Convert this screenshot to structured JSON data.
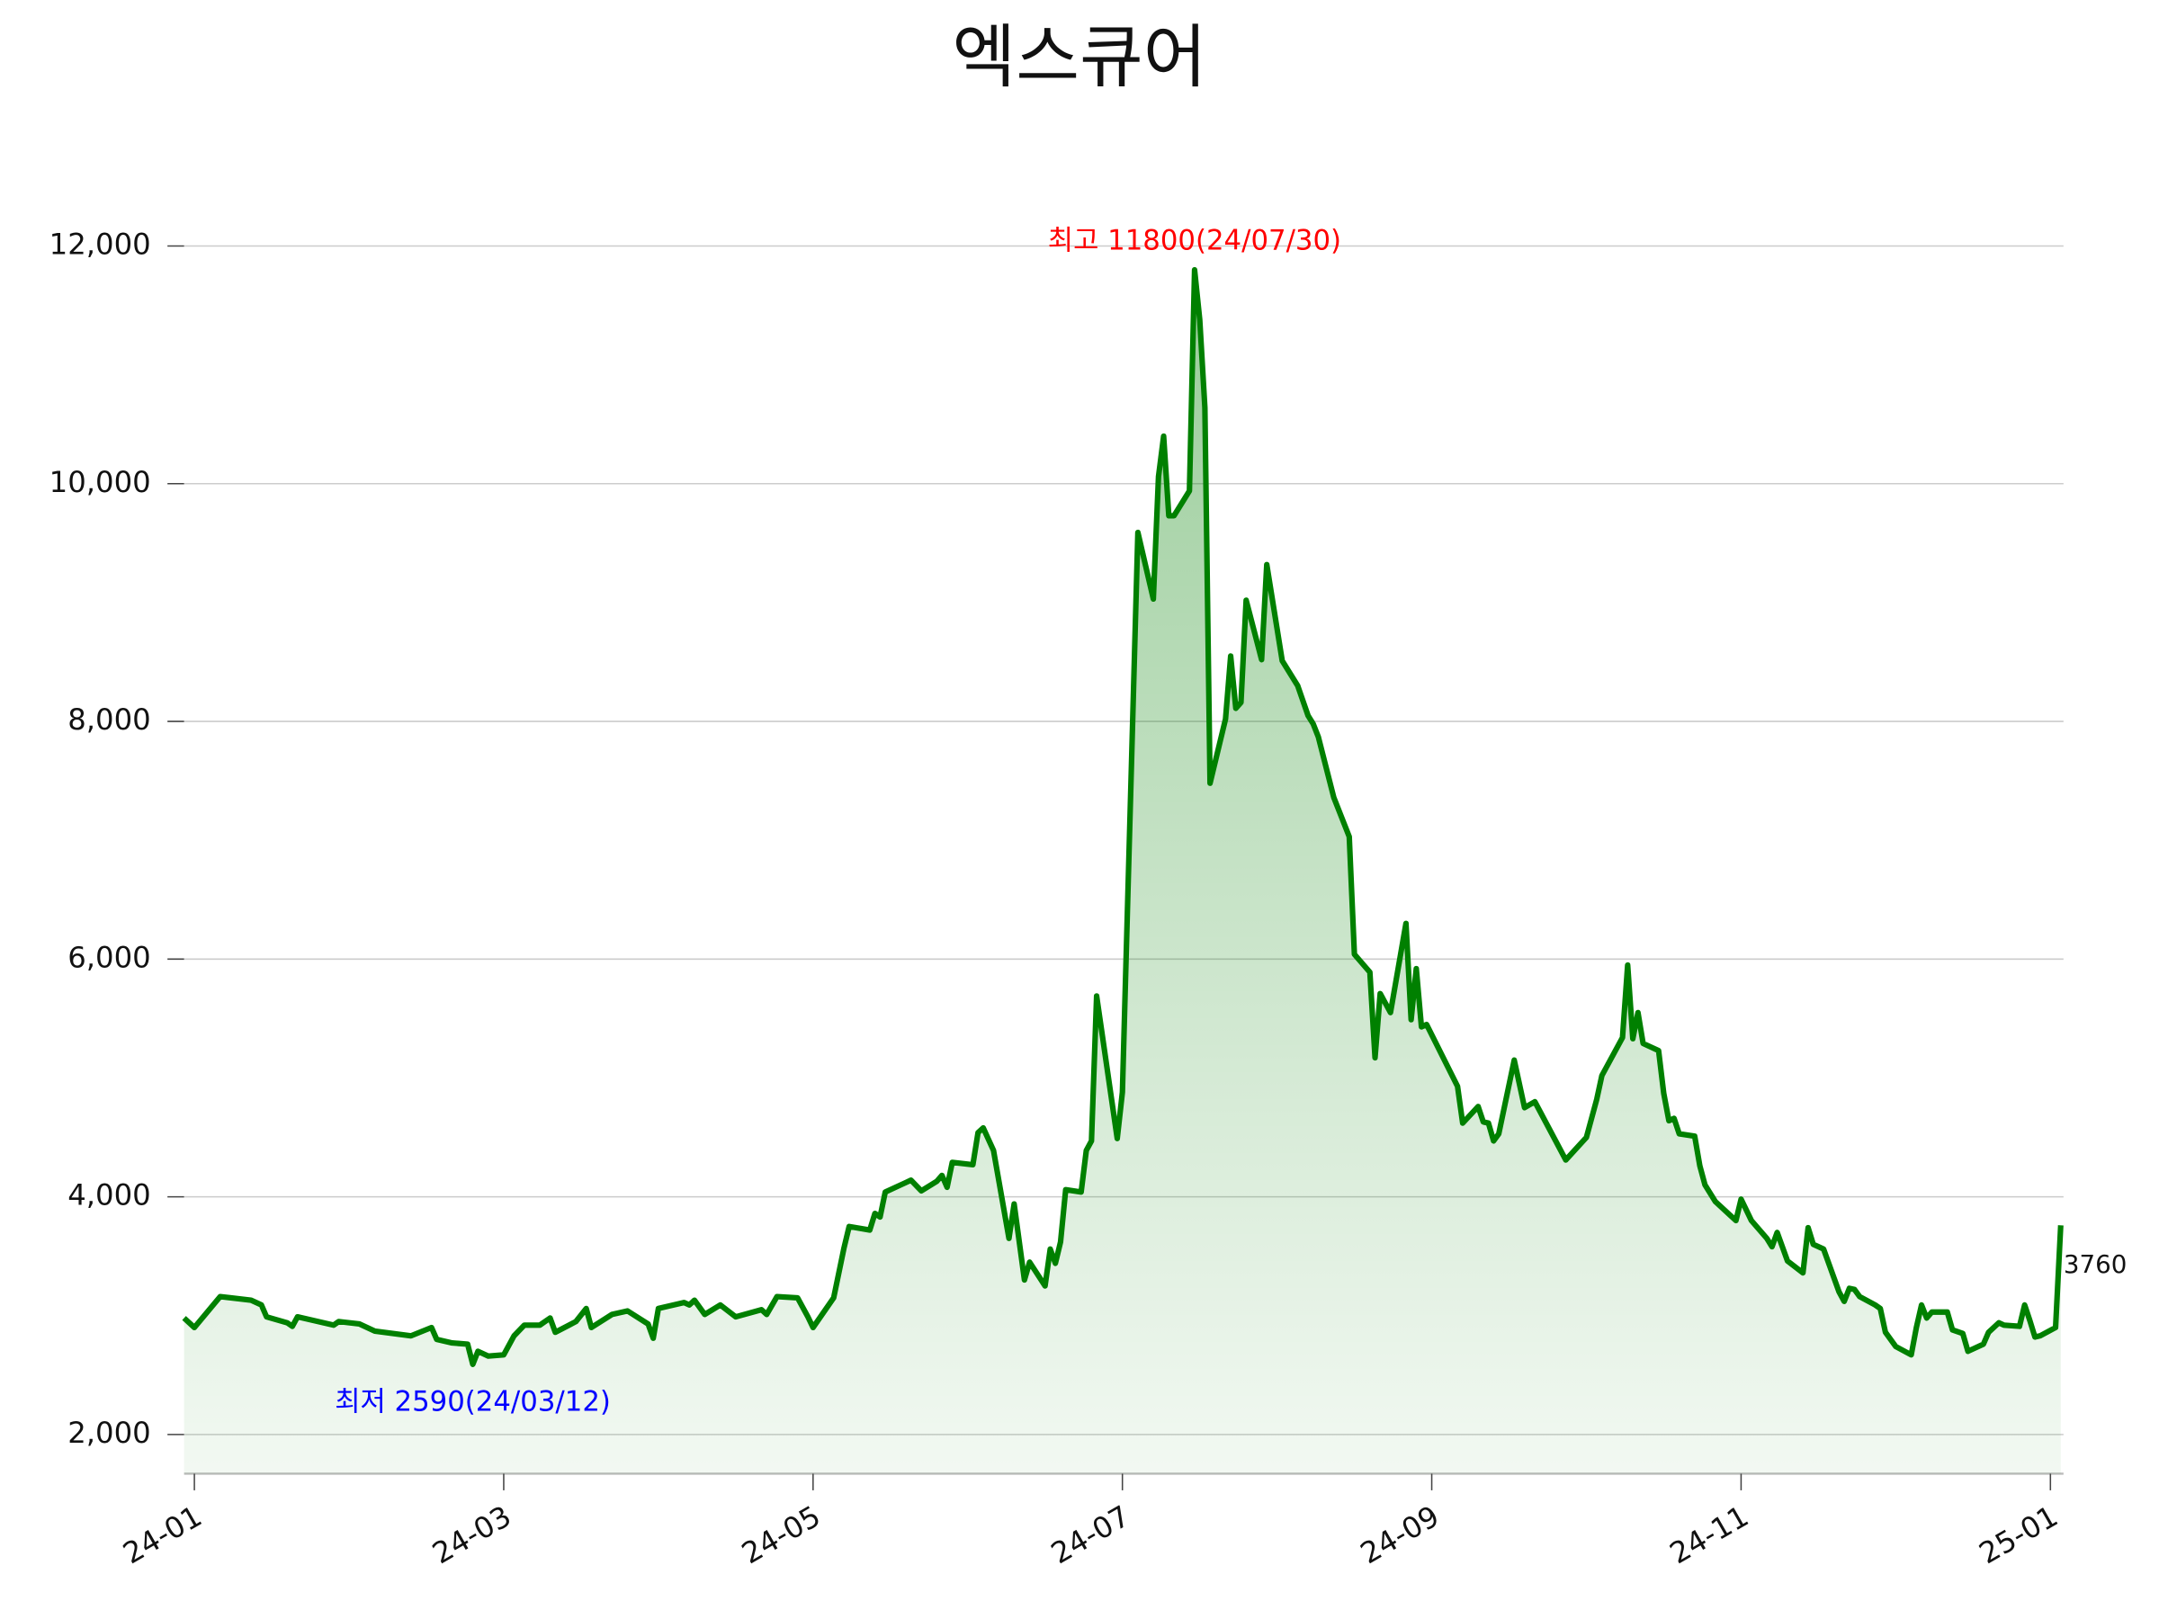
{
  "chart_data": {
    "type": "line",
    "title": "엑스큐어",
    "color": "#008000",
    "grid": true,
    "x": [
      "2024-01-16",
      "2024-01-18",
      "2024-01-23",
      "2024-01-29",
      "2024-01-31",
      "2024-02-01",
      "2024-02-05",
      "2024-02-06",
      "2024-02-07",
      "2024-02-14",
      "2024-02-15",
      "2024-02-19",
      "2024-02-22",
      "2024-02-29",
      "2024-03-04",
      "2024-03-05",
      "2024-03-08",
      "2024-03-11",
      "2024-03-12",
      "2024-03-13",
      "2024-03-15",
      "2024-03-18",
      "2024-03-20",
      "2024-03-22",
      "2024-03-25",
      "2024-03-27",
      "2024-03-28",
      "2024-04-01",
      "2024-04-03",
      "2024-04-04",
      "2024-04-08",
      "2024-04-11",
      "2024-04-15",
      "2024-04-16",
      "2024-04-17",
      "2024-04-22",
      "2024-04-23",
      "2024-04-24",
      "2024-04-26",
      "2024-04-29",
      "2024-05-02",
      "2024-05-07",
      "2024-05-08",
      "2024-05-10",
      "2024-05-14",
      "2024-05-16",
      "2024-05-17",
      "2024-05-21",
      "2024-05-23",
      "2024-05-24",
      "2024-05-28",
      "2024-05-29",
      "2024-05-30",
      "2024-05-31",
      "2024-06-03",
      "2024-06-04",
      "2024-06-05",
      "2024-06-07",
      "2024-06-10",
      "2024-06-11",
      "2024-06-12",
      "2024-06-13",
      "2024-06-17",
      "2024-06-18",
      "2024-06-19",
      "2024-06-21",
      "2024-06-24",
      "2024-06-25",
      "2024-06-27",
      "2024-06-28",
      "2024-07-01",
      "2024-07-02",
      "2024-07-03",
      "2024-07-04",
      "2024-07-05",
      "2024-07-08",
      "2024-07-09",
      "2024-07-10",
      "2024-07-11",
      "2024-07-15",
      "2024-07-16",
      "2024-07-19",
      "2024-07-22",
      "2024-07-23",
      "2024-07-24",
      "2024-07-25",
      "2024-07-26",
      "2024-07-29",
      "2024-07-30",
      "2024-07-31",
      "2024-08-01",
      "2024-08-02",
      "2024-08-05",
      "2024-08-06",
      "2024-08-07",
      "2024-08-08",
      "2024-08-09",
      "2024-08-12",
      "2024-08-13",
      "2024-08-16",
      "2024-08-19",
      "2024-08-21",
      "2024-08-22",
      "2024-08-23",
      "2024-08-26",
      "2024-08-29",
      "2024-08-30",
      "2024-09-02",
      "2024-09-03",
      "2024-09-04",
      "2024-09-06",
      "2024-09-09",
      "2024-09-10",
      "2024-09-11",
      "2024-09-12",
      "2024-09-13",
      "2024-09-19",
      "2024-09-20",
      "2024-09-23",
      "2024-09-24",
      "2024-09-25",
      "2024-09-26",
      "2024-09-27",
      "2024-09-30",
      "2024-10-02",
      "2024-10-04",
      "2024-10-10",
      "2024-10-14",
      "2024-10-16",
      "2024-10-17",
      "2024-10-21",
      "2024-10-22",
      "2024-10-23",
      "2024-10-24",
      "2024-10-25",
      "2024-10-28",
      "2024-10-29",
      "2024-10-30",
      "2024-10-31",
      "2024-11-01",
      "2024-11-04",
      "2024-11-05",
      "2024-11-06",
      "2024-11-08",
      "2024-11-11",
      "2024-11-12",
      "2024-11-13",
      "2024-11-15",
      "2024-11-18",
      "2024-11-19",
      "2024-11-20",
      "2024-11-22",
      "2024-11-25",
      "2024-11-26",
      "2024-11-27",
      "2024-11-29",
      "2024-12-02",
      "2024-12-03",
      "2024-12-04",
      "2024-12-05",
      "2024-12-06",
      "2024-12-09",
      "2024-12-10",
      "2024-12-11",
      "2024-12-13",
      "2024-12-16",
      "2024-12-17",
      "2024-12-18",
      "2024-12-19",
      "2024-12-20",
      "2024-12-23",
      "2024-12-24",
      "2024-12-26",
      "2024-12-27",
      "2024-12-30",
      "2024-12-31",
      "2025-01-02",
      "2025-01-03",
      "2025-01-06",
      "2025-01-07",
      "2025-01-08",
      "2025-01-09",
      "2025-01-10",
      "2025-01-13",
      "2025-01-14"
    ],
    "values": [
      2980,
      2900,
      3160,
      3130,
      3090,
      2990,
      2940,
      2910,
      2990,
      2920,
      2950,
      2930,
      2870,
      2830,
      2900,
      2800,
      2770,
      2760,
      2590,
      2700,
      2660,
      2670,
      2830,
      2920,
      2920,
      2980,
      2860,
      2950,
      3060,
      2900,
      3010,
      3040,
      2930,
      2810,
      3060,
      3110,
      3090,
      3130,
      3010,
      3090,
      2990,
      3050,
      3010,
      3160,
      3150,
      2990,
      2900,
      3150,
      3570,
      3750,
      3720,
      3860,
      3830,
      4040,
      4100,
      4120,
      4140,
      4050,
      4130,
      4180,
      4080,
      4290,
      4270,
      4540,
      4580,
      4390,
      3650,
      3940,
      3300,
      3450,
      3250,
      3560,
      3440,
      3620,
      4060,
      4040,
      4390,
      4470,
      5690,
      4490,
      4880,
      9590,
      9030,
      10060,
      10400,
      9730,
      9730,
      9940,
      11800,
      11380,
      10640,
      7480,
      8020,
      8550,
      8110,
      8160,
      9020,
      8520,
      9320,
      8510,
      8300,
      8050,
      7980,
      7870,
      7360,
      7030,
      6040,
      5890,
      5170,
      5710,
      5550,
      6300,
      5490,
      5920,
      5430,
      5450,
      4930,
      4620,
      4760,
      4630,
      4620,
      4470,
      4530,
      5150,
      4750,
      4800,
      4310,
      4500,
      4820,
      5020,
      5340,
      5950,
      5330,
      5550,
      5290,
      5230,
      4870,
      4640,
      4660,
      4530,
      4510,
      4260,
      4100,
      3960,
      3840,
      3800,
      3980,
      3800,
      3650,
      3580,
      3700,
      3460,
      3360,
      3740,
      3600,
      3560,
      3200,
      3120,
      3230,
      3220,
      3160,
      3090,
      3060,
      2860,
      2740,
      2670,
      2900,
      3090,
      2980,
      3030,
      3030,
      2880,
      2850,
      2700,
      2760,
      2860,
      2940,
      2920,
      2910,
      3090,
      2960,
      2820,
      2830,
      2900,
      3760
    ],
    "xlim": [
      "2024-01-16",
      "2025-01-14"
    ],
    "xticks": [
      {
        "value": "2024-01-18",
        "label": "24-01"
      },
      {
        "value": "2024-03-18",
        "label": "24-03"
      },
      {
        "value": "2024-05-17",
        "label": "24-05"
      },
      {
        "value": "2024-07-16",
        "label": "24-07"
      },
      {
        "value": "2024-09-14",
        "label": "24-09"
      },
      {
        "value": "2024-11-13",
        "label": "24-11"
      },
      {
        "value": "2025-01-12",
        "label": "25-01"
      }
    ],
    "ylim": [
      1670,
      12440
    ],
    "yticks": [
      {
        "value": 2000,
        "label": "2,000"
      },
      {
        "value": 4000,
        "label": "4,000"
      },
      {
        "value": 6000,
        "label": "6,000"
      },
      {
        "value": 8000,
        "label": "8,000"
      },
      {
        "value": 10000,
        "label": "10,000"
      },
      {
        "value": 12000,
        "label": "12,000"
      }
    ],
    "annotations": {
      "max": {
        "text": "최고 11800(24/07/30)",
        "color": "#ff0000"
      },
      "min": {
        "text": "최저 2590(24/03/12)",
        "color": "#0000ff"
      }
    }
  }
}
